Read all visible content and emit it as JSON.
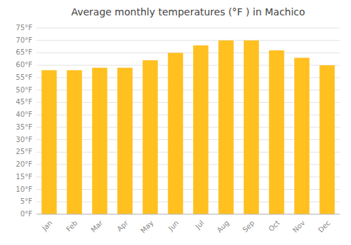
{
  "chart_data": {
    "type": "bar",
    "title": "Average monthly temperatures (°F ) in Machico",
    "categories": [
      "Jan",
      "Feb",
      "Mar",
      "Apr",
      "May",
      "Jun",
      "Jul",
      "Aug",
      "Sep",
      "Oct",
      "Nov",
      "Dec"
    ],
    "values": [
      58,
      58,
      59,
      59,
      62,
      65,
      68,
      70,
      70,
      66,
      63,
      60
    ],
    "color": "#FFC020",
    "ylim": [
      0,
      75
    ],
    "yticks": [
      {
        "value": 0,
        "label": "0°F"
      },
      {
        "value": 5,
        "label": "5°F"
      },
      {
        "value": 10,
        "label": "10°F"
      },
      {
        "value": 15,
        "label": "15°F"
      },
      {
        "value": 20,
        "label": "20°F"
      },
      {
        "value": 25,
        "label": "25°F"
      },
      {
        "value": 30,
        "label": "30°F"
      },
      {
        "value": 35,
        "label": "35°F"
      },
      {
        "value": 40,
        "label": "40°F"
      },
      {
        "value": 45,
        "label": "45°F"
      },
      {
        "value": 50,
        "label": "50°F"
      },
      {
        "value": 55,
        "label": "55°F"
      },
      {
        "value": 60,
        "label": "60°F"
      },
      {
        "value": 65,
        "label": "65°F"
      },
      {
        "value": 70,
        "label": "70°F"
      },
      {
        "value": 75,
        "label": "75°F"
      }
    ],
    "grid": true
  }
}
